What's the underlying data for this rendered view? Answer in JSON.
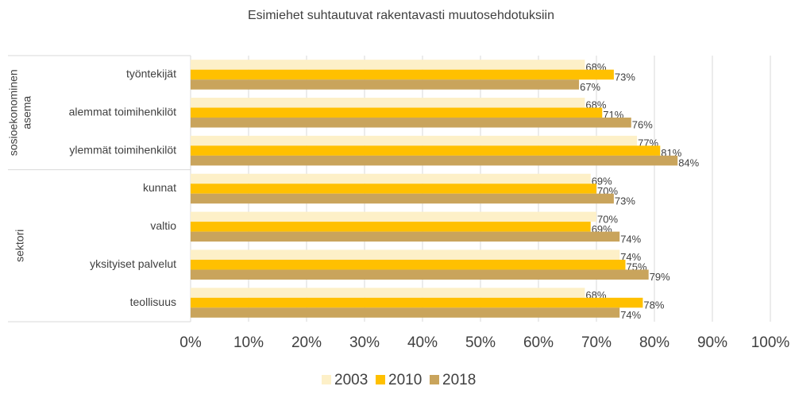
{
  "chart_data": {
    "type": "hbar",
    "title": "Esimiehet suhtautuvat rakentavasti muutosehdotuksiin",
    "categories": [
      "työntekijät",
      "alemmat toimihenkilöt",
      "ylemmät toimihenkilöt",
      "kunnat",
      "valtio",
      "yksityiset palvelut",
      "teollisuus"
    ],
    "groups": [
      {
        "name": "sosioekonominen asema",
        "size": 3
      },
      {
        "name": "sektori",
        "size": 4
      }
    ],
    "series": [
      {
        "name": "2003",
        "color": "#fdf0c8",
        "values": [
          68,
          68,
          77,
          69,
          70,
          74,
          68
        ],
        "value_labels": [
          "68%",
          "68%",
          "77%",
          "69%",
          "70%",
          "74%",
          "68%"
        ]
      },
      {
        "name": "2010",
        "color": "#ffc000",
        "values": [
          73,
          71,
          81,
          70,
          69,
          75,
          78
        ],
        "value_labels": [
          "73%",
          "71%",
          "81%",
          "70%",
          "69%",
          "75%",
          "78%"
        ]
      },
      {
        "name": "2018",
        "color": "#c9a45c",
        "values": [
          67,
          76,
          84,
          73,
          74,
          79,
          74
        ],
        "value_labels": [
          "67%",
          "76%",
          "84%",
          "73%",
          "74%",
          "79%",
          "74%"
        ]
      }
    ],
    "xlim": [
      0,
      100
    ],
    "xticks": [
      {
        "value": 0,
        "label": "0%"
      },
      {
        "value": 10,
        "label": "10%"
      },
      {
        "value": 20,
        "label": "20%"
      },
      {
        "value": 30,
        "label": "30%"
      },
      {
        "value": 40,
        "label": "40%"
      },
      {
        "value": 50,
        "label": "50%"
      },
      {
        "value": 60,
        "label": "60%"
      },
      {
        "value": 70,
        "label": "70%"
      },
      {
        "value": 80,
        "label": "80%"
      },
      {
        "value": 90,
        "label": "90%"
      },
      {
        "value": 100,
        "label": "100%"
      }
    ],
    "grid": true,
    "legend": "bottom"
  }
}
